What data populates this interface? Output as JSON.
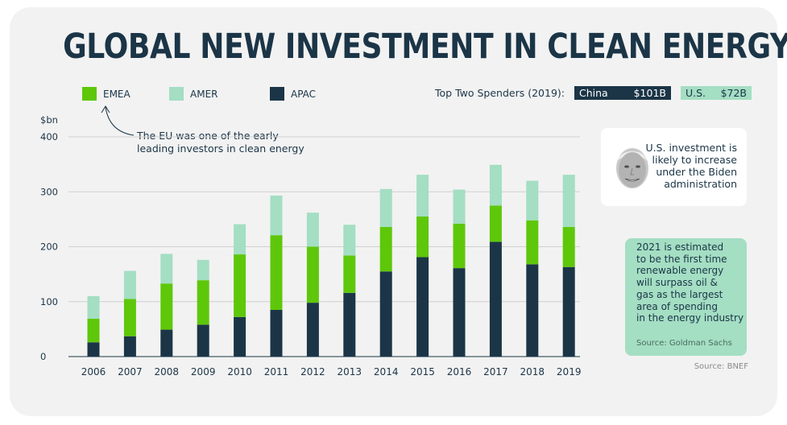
{
  "title": "GLOBAL NEW INVESTMENT IN CLEAN ENERGY",
  "colors": {
    "EMEA": "#5ec70a",
    "AMER": "#a4dec3",
    "APAC": "#1b3547",
    "background": "#f2f2f2",
    "grid": "#d0d0d0"
  },
  "legend": [
    {
      "label": "EMEA",
      "color": "#5ec70a"
    },
    {
      "label": "AMER",
      "color": "#a4dec3"
    },
    {
      "label": "APAC",
      "color": "#1b3547"
    }
  ],
  "top_spenders": {
    "label": "Top Two Spenders (2019):",
    "items": [
      {
        "country": "China",
        "value": "$101B"
      },
      {
        "country": "U.S.",
        "value": "$72B"
      }
    ]
  },
  "annotations": {
    "eu": [
      "The EU was one of the early",
      "leading investors in clean energy"
    ],
    "biden": [
      "U.S. investment is",
      "likely to increase",
      "under the Biden",
      "administration"
    ],
    "outlook": [
      "2021 is estimated",
      "to be the first time",
      "renewable energy",
      "will surpass oil &",
      "gas as the largest",
      "area of spending",
      "in the energy industry"
    ],
    "outlook_source": "Source: Goldman Sachs"
  },
  "source": "Source: BNEF",
  "chart_data": {
    "type": "bar",
    "stacked": true,
    "categories": [
      "2006",
      "2007",
      "2008",
      "2009",
      "2010",
      "2011",
      "2012",
      "2013",
      "2014",
      "2015",
      "2016",
      "2017",
      "2018",
      "2019"
    ],
    "series": [
      {
        "name": "APAC",
        "values": [
          26,
          37,
          49,
          58,
          72,
          85,
          98,
          116,
          155,
          181,
          161,
          209,
          168,
          163
        ]
      },
      {
        "name": "EMEA",
        "values": [
          43,
          68,
          84,
          81,
          114,
          136,
          102,
          68,
          81,
          74,
          81,
          66,
          80,
          73
        ]
      },
      {
        "name": "AMER",
        "values": [
          41,
          51,
          54,
          37,
          55,
          72,
          62,
          56,
          69,
          76,
          62,
          74,
          72,
          95
        ]
      }
    ],
    "ylabel": "$bn",
    "ylim": [
      0,
      400
    ],
    "yticks": [
      0,
      100,
      200,
      300,
      400
    ],
    "grid": true
  }
}
